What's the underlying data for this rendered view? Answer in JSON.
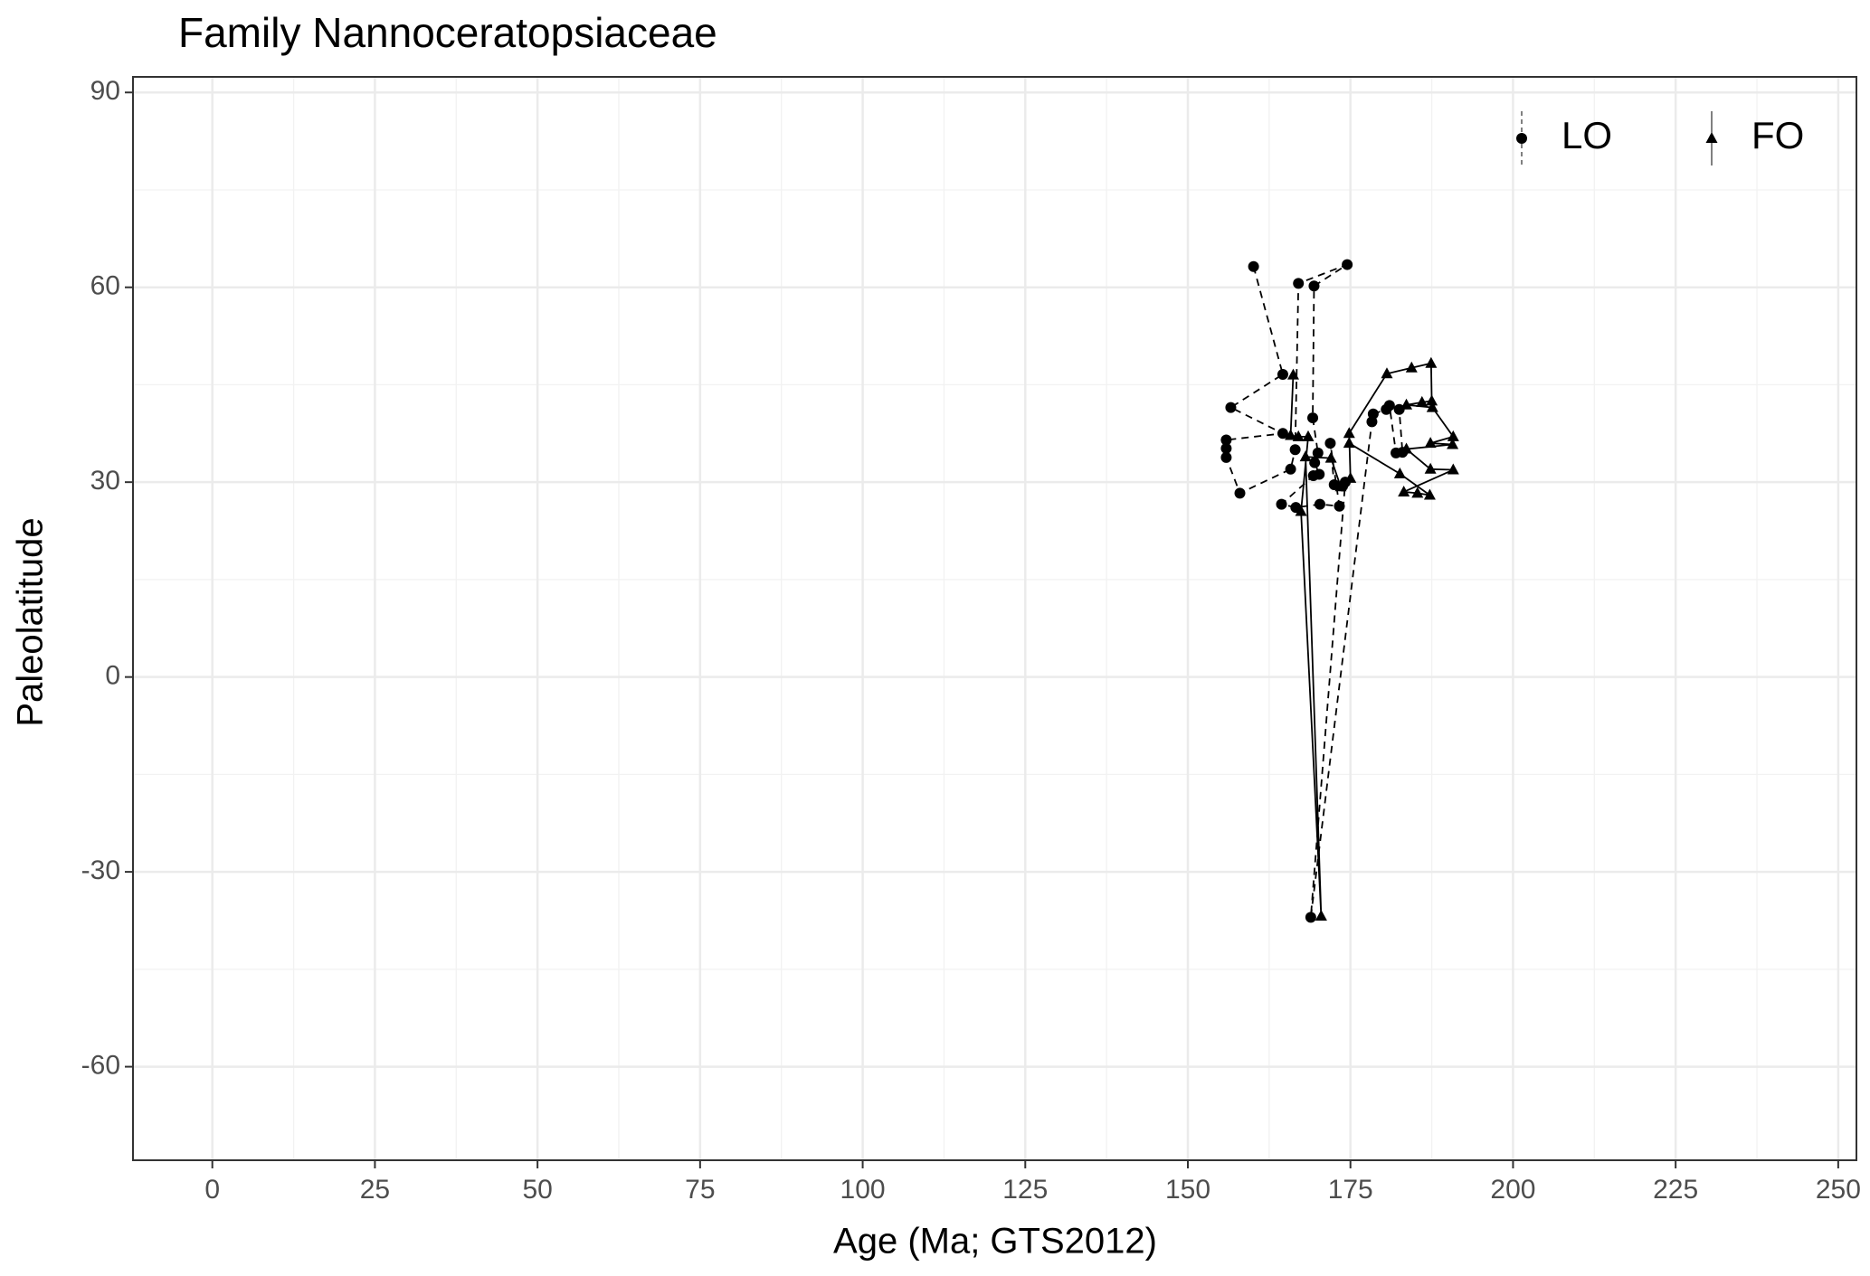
{
  "chart_data": {
    "type": "scatter",
    "title": "Family Nannoceratopsiaceae",
    "x_label": "Age (Ma; GTS2012)",
    "y_label": "Paleolatitude",
    "xlim": [
      -12.2,
      252.8
    ],
    "ylim": [
      -74.4,
      92.4
    ],
    "xticks": [
      0,
      25,
      50,
      75,
      100,
      125,
      150,
      175,
      200,
      225,
      250
    ],
    "yticks": [
      -60,
      -30,
      0,
      30,
      60,
      90
    ],
    "x_minor_ticks": [
      12.5,
      37.5,
      62.5,
      87.5,
      112.5,
      137.5,
      162.5,
      187.5,
      212.5,
      237.5
    ],
    "y_minor_ticks": [
      -45,
      -15,
      15,
      45,
      75
    ],
    "grid": true,
    "legend_position": "top-right",
    "series": [
      {
        "name": "LO",
        "color": "#000000",
        "marker": "circle",
        "linestyle": "dashed",
        "x": [
          160.1,
          164.6,
          156.6,
          164.6,
          155.9,
          155.9,
          155.9,
          158.0,
          165.8,
          166.5,
          167.0,
          174.5,
          169.4,
          169.2,
          170.0,
          169.5,
          170.2,
          169.3,
          164.4,
          166.6,
          170.3,
          173.3,
          171.9,
          172.5,
          173.8,
          174.2,
          168.9,
          178.3,
          178.5,
          180.5,
          181.0,
          182.0,
          183.0,
          182.5,
          180.6
        ],
        "values": [
          63.2,
          46.6,
          41.5,
          37.5,
          36.5,
          35.2,
          33.8,
          28.3,
          32.0,
          35.0,
          60.6,
          63.5,
          60.2,
          39.9,
          34.5,
          33.0,
          31.2,
          31.0,
          26.6,
          26.1,
          26.6,
          26.3,
          36.0,
          29.6,
          29.4,
          30.0,
          -37.0,
          39.3,
          40.5,
          41.2,
          41.8,
          34.5,
          34.6,
          41.2,
          null
        ]
      },
      {
        "name": "FO",
        "color": "#000000",
        "marker": "triangle",
        "linestyle": "solid",
        "x": [
          166.2,
          165.8,
          167.0,
          168.5,
          167.4,
          170.5,
          168.1,
          172.0,
          173.5,
          175.0,
          174.8,
          180.6,
          184.4,
          187.4,
          187.5,
          186.0,
          183.6,
          187.6,
          190.8,
          187.3,
          190.7,
          183.6,
          187.3,
          190.8,
          183.2,
          185.3,
          187.2,
          182.6,
          174.8,
          182.8
        ],
        "values": [
          46.5,
          37.2,
          37.0,
          37.0,
          25.5,
          -36.8,
          33.9,
          33.7,
          29.3,
          30.6,
          37.5,
          46.7,
          47.6,
          48.3,
          42.5,
          42.3,
          41.9,
          41.5,
          37.0,
          36.0,
          35.8,
          35.1,
          32.0,
          31.9,
          28.5,
          28.3,
          28.0,
          31.3,
          36.0,
          null
        ]
      }
    ]
  }
}
